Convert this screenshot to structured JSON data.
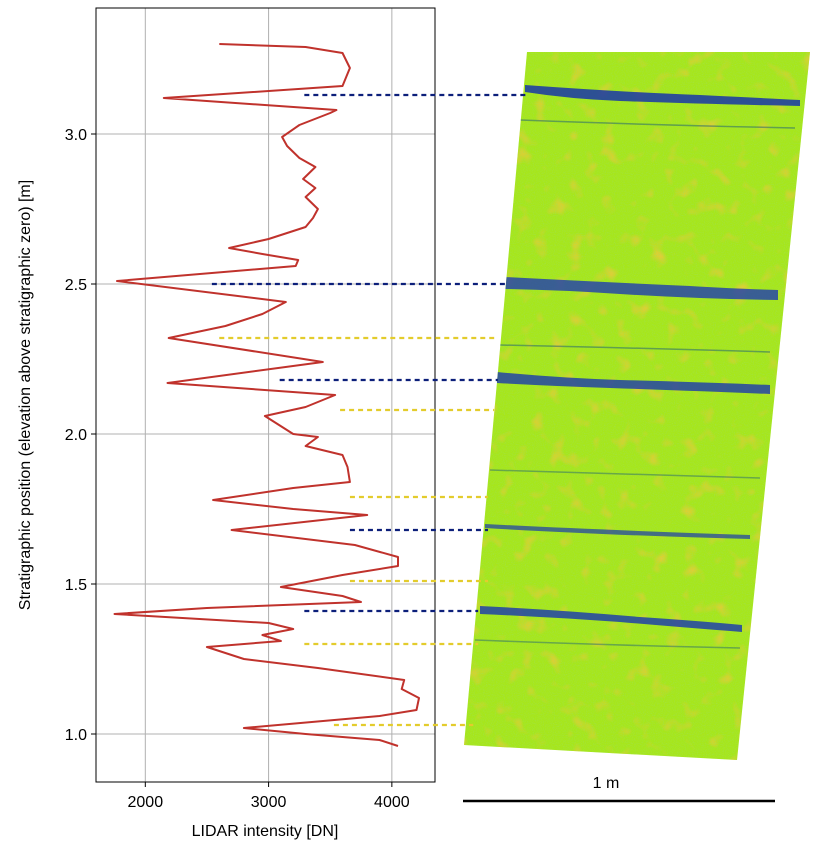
{
  "chart_data": {
    "type": "line",
    "xlabel": "LIDAR intensity [DN]",
    "ylabel": "Stratigraphic position (elevation above stratigraphic zero) [m]",
    "xlim": [
      1600,
      4350
    ],
    "ylim": [
      0.84,
      3.42
    ],
    "xticks": [
      2000,
      3000,
      4000
    ],
    "yticks": [
      1.0,
      1.5,
      2.0,
      2.5,
      3.0
    ],
    "xtick_labels": [
      "2000",
      "3000",
      "4000"
    ],
    "ytick_labels": [
      "1.0",
      "1.5",
      "2.0",
      "2.5",
      "3.0"
    ],
    "grid": true,
    "line_color": "#c0322c",
    "series": [
      {
        "points": [
          [
            4050,
            0.96
          ],
          [
            3900,
            0.98
          ],
          [
            3300,
            1.0
          ],
          [
            2800,
            1.02
          ],
          [
            3900,
            1.06
          ],
          [
            4200,
            1.08
          ],
          [
            4220,
            1.12
          ],
          [
            4080,
            1.15
          ],
          [
            4100,
            1.18
          ],
          [
            3400,
            1.22
          ],
          [
            2800,
            1.25
          ],
          [
            2500,
            1.29
          ],
          [
            3100,
            1.31
          ],
          [
            2950,
            1.33
          ],
          [
            3200,
            1.35
          ],
          [
            3000,
            1.37
          ],
          [
            1750,
            1.4
          ],
          [
            2500,
            1.42
          ],
          [
            3750,
            1.44
          ],
          [
            3600,
            1.46
          ],
          [
            3100,
            1.49
          ],
          [
            3600,
            1.53
          ],
          [
            4050,
            1.56
          ],
          [
            4050,
            1.59
          ],
          [
            3700,
            1.63
          ],
          [
            2700,
            1.68
          ],
          [
            3800,
            1.73
          ],
          [
            3200,
            1.75
          ],
          [
            2550,
            1.78
          ],
          [
            3200,
            1.82
          ],
          [
            3660,
            1.84
          ],
          [
            3640,
            1.89
          ],
          [
            3600,
            1.93
          ],
          [
            3300,
            1.96
          ],
          [
            3400,
            1.99
          ],
          [
            3200,
            2.0
          ],
          [
            2970,
            2.06
          ],
          [
            3300,
            2.09
          ],
          [
            3540,
            2.13
          ],
          [
            2180,
            2.17
          ],
          [
            3440,
            2.24
          ],
          [
            2190,
            2.32
          ],
          [
            2650,
            2.36
          ],
          [
            2950,
            2.4
          ],
          [
            3140,
            2.44
          ],
          [
            1770,
            2.51
          ],
          [
            3220,
            2.56
          ],
          [
            3240,
            2.58
          ],
          [
            2950,
            2.6
          ],
          [
            2680,
            2.62
          ],
          [
            3000,
            2.65
          ],
          [
            3300,
            2.69
          ],
          [
            3360,
            2.72
          ],
          [
            3400,
            2.75
          ],
          [
            3300,
            2.79
          ],
          [
            3380,
            2.82
          ],
          [
            3280,
            2.85
          ],
          [
            3380,
            2.89
          ],
          [
            3250,
            2.92
          ],
          [
            3150,
            2.96
          ],
          [
            3110,
            2.99
          ],
          [
            3250,
            3.03
          ],
          [
            3500,
            3.07
          ],
          [
            3550,
            3.08
          ],
          [
            2150,
            3.12
          ],
          [
            3600,
            3.16
          ],
          [
            3660,
            3.22
          ],
          [
            3600,
            3.27
          ],
          [
            3300,
            3.29
          ],
          [
            2600,
            3.3
          ]
        ]
      }
    ]
  },
  "scan": {
    "scale_label": "1 m",
    "marker_colors": {
      "navy": "#0c1f7a",
      "yellow": "#e3cc2c"
    },
    "markers": [
      {
        "color": "navy",
        "y": 3.13,
        "x_start": 3290,
        "x_end": 5100
      },
      {
        "color": "navy",
        "y": 2.5,
        "x_start": 2540,
        "x_end": 4930
      },
      {
        "color": "yellow",
        "y": 2.32,
        "x_start": 2600,
        "x_end": 4830
      },
      {
        "color": "navy",
        "y": 2.18,
        "x_start": 3090,
        "x_end": 4860
      },
      {
        "color": "yellow",
        "y": 2.08,
        "x_start": 3580,
        "x_end": 4830
      },
      {
        "color": "yellow",
        "y": 1.79,
        "x_start": 3660,
        "x_end": 4780
      },
      {
        "color": "navy",
        "y": 1.68,
        "x_start": 3660,
        "x_end": 4780
      },
      {
        "color": "yellow",
        "y": 1.51,
        "x_start": 3660,
        "x_end": 4780
      },
      {
        "color": "navy",
        "y": 1.41,
        "x_start": 3290,
        "x_end": 4700
      },
      {
        "color": "yellow",
        "y": 1.3,
        "x_start": 3290,
        "x_end": 4700
      },
      {
        "color": "yellow",
        "y": 1.03,
        "x_start": 3530,
        "x_end": 4660
      }
    ]
  }
}
